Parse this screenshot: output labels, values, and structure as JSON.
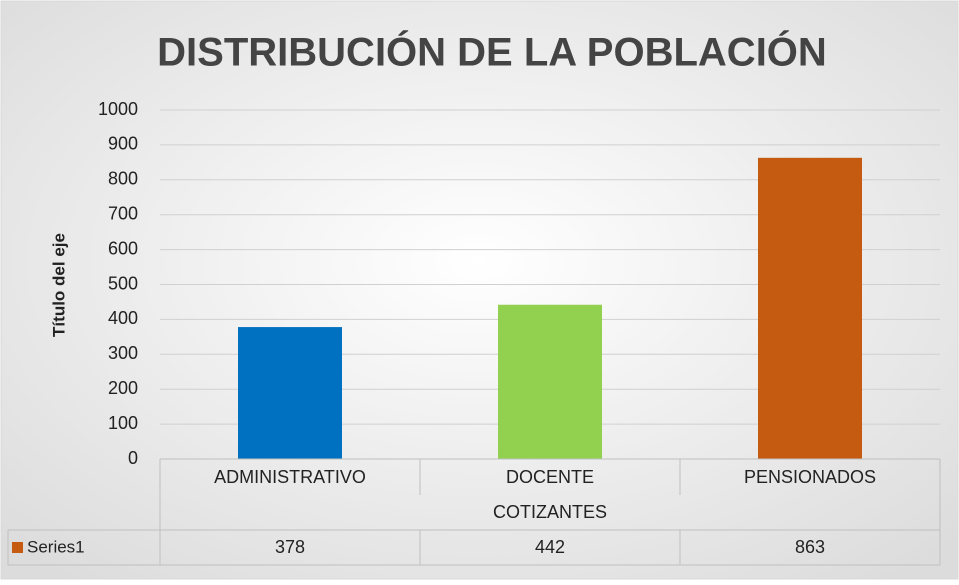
{
  "chart_data": {
    "type": "bar",
    "title": "DISTRIBUCIÓN DE LA POBLACIÓN",
    "y_axis_label": "Título del eje",
    "x_axis_label": "COTIZANTES",
    "categories": [
      "ADMINISTRATIVO",
      "DOCENTE",
      "PENSIONADOS"
    ],
    "series": [
      {
        "name": "Series1",
        "color": "#c55a11",
        "colors": [
          "#0070c0",
          "#92d050",
          "#c55a11"
        ],
        "values": [
          378,
          442,
          863
        ]
      }
    ],
    "ylim": [
      0,
      1000
    ],
    "yticks": [
      0,
      100,
      200,
      300,
      400,
      500,
      600,
      700,
      800,
      900,
      1000
    ],
    "grid": true
  }
}
